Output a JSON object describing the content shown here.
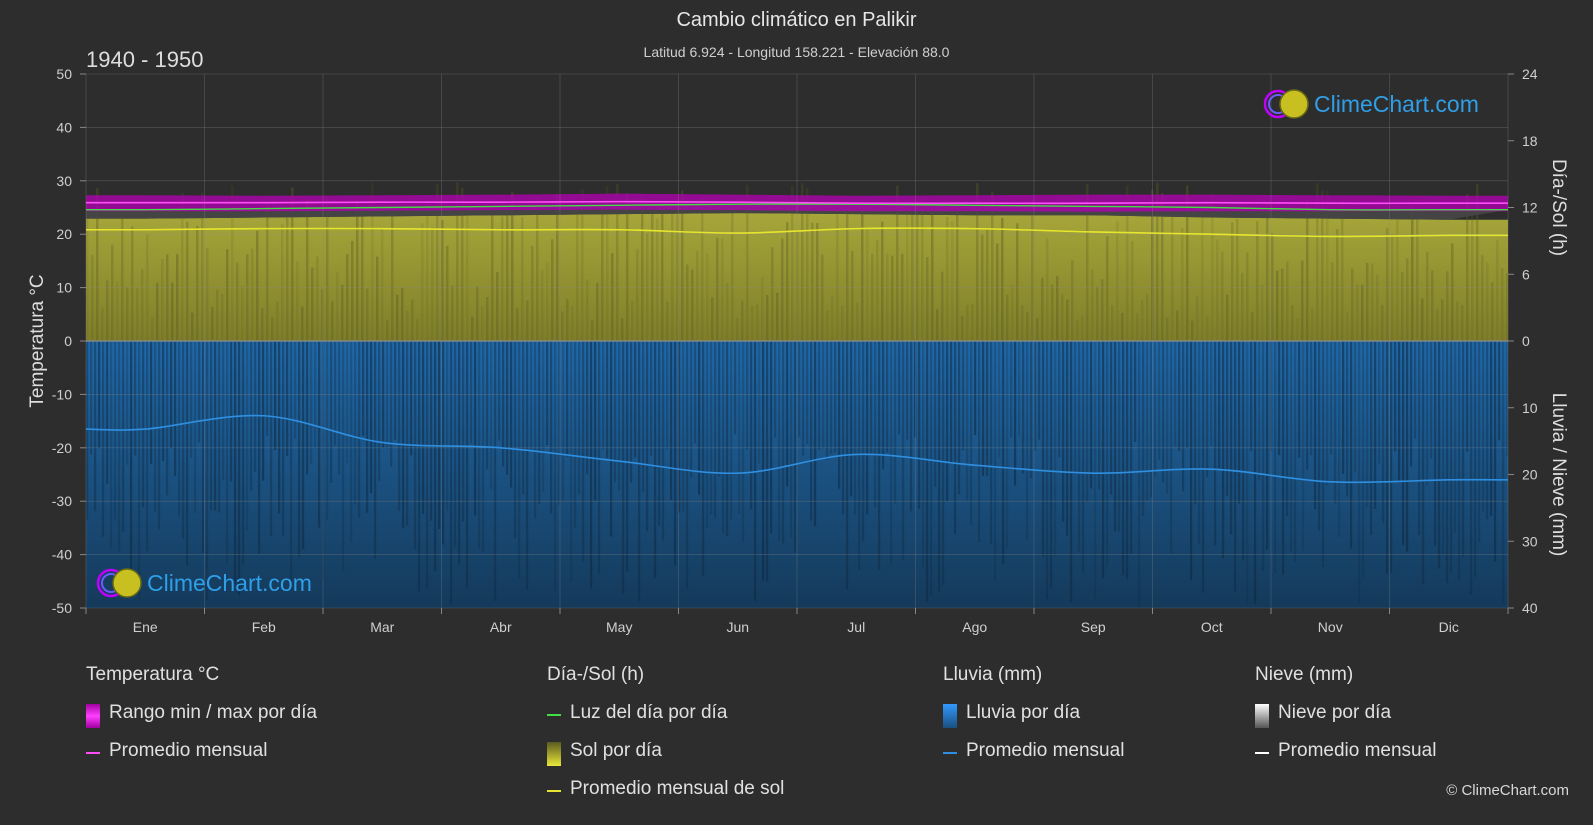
{
  "header": {
    "title": "Cambio climático en Palikir",
    "subtitle": "Latitud 6.924 - Longitud 158.221 - Elevación 88.0",
    "period": "1940 - 1950"
  },
  "axes": {
    "left_label": "Temperatura °C",
    "right_top_label": "Día-/Sol (h)",
    "right_bottom_label": "Lluvia / Nieve (mm)",
    "left_ticks": [
      "50",
      "40",
      "30",
      "20",
      "10",
      "0",
      "-10",
      "-20",
      "-30",
      "-40",
      "-50"
    ],
    "right_top_ticks": [
      "24",
      "18",
      "12",
      "6",
      "0"
    ],
    "right_bottom_ticks": [
      "10",
      "20",
      "30",
      "40"
    ]
  },
  "chart_data": {
    "type": "line",
    "categories": [
      "Ene",
      "Feb",
      "Mar",
      "Abr",
      "May",
      "Jun",
      "Jul",
      "Ago",
      "Sep",
      "Oct",
      "Nov",
      "Dic"
    ],
    "ylim_temperature": [
      -50,
      50
    ],
    "ylim_sun_hours": [
      0,
      24
    ],
    "ylim_precip_mm": [
      0,
      40
    ],
    "series": [
      {
        "name": "Promedio mensual",
        "group": "temperature",
        "color": "#ff4df8",
        "values": [
          25.9,
          25.9,
          26.0,
          26.0,
          26.1,
          26.0,
          25.8,
          25.8,
          25.8,
          25.9,
          25.8,
          25.8
        ]
      },
      {
        "name": "Rango min / max por día",
        "group": "temperature",
        "color": "#d400d4",
        "min": [
          24.3,
          24.3,
          24.4,
          24.5,
          24.6,
          24.5,
          24.3,
          24.3,
          24.2,
          24.3,
          24.3,
          24.3
        ],
        "max": [
          27.3,
          27.2,
          27.3,
          27.4,
          27.6,
          27.4,
          27.2,
          27.3,
          27.4,
          27.4,
          27.3,
          27.2
        ]
      },
      {
        "name": "Luz del día por día",
        "group": "sun",
        "color": "#44dd44",
        "values": [
          11.8,
          11.9,
          12.0,
          12.1,
          12.2,
          12.3,
          12.3,
          12.2,
          12.1,
          12.0,
          11.8,
          11.8
        ]
      },
      {
        "name": "Sol por día",
        "group": "sun",
        "color": "#c8c83a",
        "values": [
          11.0,
          11.1,
          11.2,
          11.3,
          11.4,
          11.5,
          11.4,
          11.3,
          11.3,
          11.1,
          11.0,
          10.9
        ]
      },
      {
        "name": "Promedio mensual de sol",
        "group": "sun",
        "color": "#e6e62e",
        "values": [
          10.0,
          10.1,
          10.1,
          10.0,
          10.0,
          9.7,
          10.1,
          10.1,
          9.8,
          9.6,
          9.4,
          9.5
        ]
      },
      {
        "name": "Lluvia por día",
        "group": "precip",
        "color": "#1f6fb5"
      },
      {
        "name": "Promedio mensual",
        "group": "precip",
        "color": "#2f8fe0",
        "values": [
          13.2,
          11.2,
          15.2,
          16.0,
          18.0,
          19.8,
          17.0,
          18.6,
          19.8,
          19.2,
          21.1,
          20.8
        ]
      },
      {
        "name": "Nieve por día",
        "group": "snow",
        "color": "#cccccc"
      },
      {
        "name": "Promedio mensual",
        "group": "snow",
        "color": "#ffffff",
        "values": [
          0,
          0,
          0,
          0,
          0,
          0,
          0,
          0,
          0,
          0,
          0,
          0
        ]
      }
    ]
  },
  "legend": {
    "groups": [
      {
        "title": "Temperatura °C",
        "items": [
          {
            "label": "Rango min / max por día",
            "kind": "box",
            "color": "#e01ee0"
          },
          {
            "label": "Promedio mensual",
            "kind": "line",
            "color": "#ff4df8"
          }
        ]
      },
      {
        "title": "Día-/Sol (h)",
        "items": [
          {
            "label": "Luz del día por día",
            "kind": "line",
            "color": "#44dd44"
          },
          {
            "label": "Sol por día",
            "kind": "box",
            "color": "#d4d43a"
          },
          {
            "label": "Promedio mensual de sol",
            "kind": "line",
            "color": "#e6e62e"
          }
        ]
      },
      {
        "title": "Lluvia (mm)",
        "items": [
          {
            "label": "Lluvia por día",
            "kind": "box",
            "color": "#2a84d8"
          },
          {
            "label": "Promedio mensual",
            "kind": "line",
            "color": "#2f8fe0"
          }
        ]
      },
      {
        "title": "Nieve (mm)",
        "items": [
          {
            "label": "Nieve por día",
            "kind": "box",
            "color": "#dddddd"
          },
          {
            "label": "Promedio mensual",
            "kind": "line",
            "color": "#ffffff"
          }
        ]
      }
    ]
  },
  "branding": {
    "logo_text": "ClimeChart.com",
    "copyright": "© ClimeChart.com"
  }
}
